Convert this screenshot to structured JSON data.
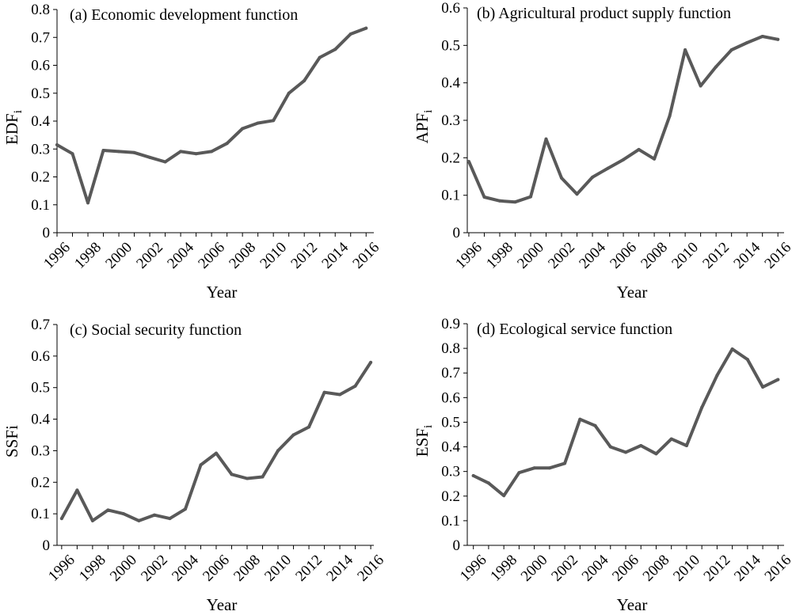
{
  "chart_data": [
    {
      "type": "line",
      "title": "(a) Economic development function",
      "xlabel": "Year",
      "ylabel": "EDF",
      "ylabel_sub": "i",
      "ylim": [
        0,
        0.8
      ],
      "ytick_values": [
        0,
        0.1,
        0.2,
        0.3,
        0.4,
        0.5,
        0.6,
        0.7,
        0.8
      ],
      "ytick_labels": [
        "0",
        "0.1",
        "0.2",
        "0.3",
        "0.4",
        "0.5",
        "0.6",
        "0.7",
        "0.8"
      ],
      "xtick_labels": [
        "1996",
        "1998",
        "2000",
        "2002",
        "2004",
        "2006",
        "2008",
        "2010",
        "2012",
        "2014",
        "2016"
      ],
      "line_color": "#595959",
      "x": [
        1996,
        1997,
        1998,
        1999,
        2000,
        2001,
        2002,
        2003,
        2004,
        2005,
        2006,
        2007,
        2008,
        2009,
        2010,
        2011,
        2012,
        2013,
        2014,
        2015,
        2016
      ],
      "values": [
        0.315,
        0.283,
        0.107,
        0.295,
        0.291,
        0.287,
        0.27,
        0.254,
        0.291,
        0.283,
        0.291,
        0.32,
        0.373,
        0.393,
        0.402,
        0.5,
        0.545,
        0.628,
        0.657,
        0.712,
        0.733
      ]
    },
    {
      "type": "line",
      "title": "(b) Agricultural product supply function",
      "xlabel": "Year",
      "ylabel": "APF",
      "ylabel_sub": "i",
      "ylim": [
        0,
        0.6
      ],
      "ytick_values": [
        0,
        0.1,
        0.2,
        0.3,
        0.4,
        0.5,
        0.6
      ],
      "ytick_labels": [
        "0",
        "0.1",
        "0.2",
        "0.3",
        "0.4",
        "0.5",
        "0.6"
      ],
      "xtick_labels": [
        "1996",
        "1998",
        "2000",
        "2002",
        "2004",
        "2006",
        "2008",
        "2010",
        "2012",
        "2014",
        "2016"
      ],
      "line_color": "#595959",
      "x": [
        1996,
        1997,
        1998,
        1999,
        2000,
        2001,
        2002,
        2003,
        2004,
        2005,
        2006,
        2007,
        2008,
        2009,
        2010,
        2011,
        2012,
        2013,
        2014,
        2015,
        2016
      ],
      "values": [
        0.19,
        0.095,
        0.085,
        0.082,
        0.096,
        0.25,
        0.146,
        0.103,
        0.148,
        0.172,
        0.195,
        0.222,
        0.197,
        0.312,
        0.488,
        0.392,
        0.443,
        0.488,
        0.507,
        0.524,
        0.516
      ]
    },
    {
      "type": "line",
      "title": "(c) Social security function",
      "xlabel": "Year",
      "ylabel": "SSFi",
      "ylabel_sub": "",
      "ylim": [
        0,
        0.7
      ],
      "ytick_values": [
        0,
        0.1,
        0.2,
        0.3,
        0.4,
        0.5,
        0.6,
        0.7
      ],
      "ytick_labels": [
        "0",
        "0.1",
        "0.2",
        "0.3",
        "0.4",
        "0.5",
        "0.6",
        "0.7"
      ],
      "xtick_labels": [
        "1996",
        "1998",
        "2000",
        "2002",
        "2004",
        "2006",
        "2008",
        "2010",
        "2012",
        "2014",
        "2016"
      ],
      "line_color": "#595959",
      "x": [
        1996,
        1997,
        1998,
        1999,
        2000,
        2001,
        2002,
        2003,
        2004,
        2005,
        2006,
        2007,
        2008,
        2009,
        2010,
        2011,
        2012,
        2013,
        2014,
        2015,
        2016
      ],
      "values": [
        0.085,
        0.175,
        0.078,
        0.112,
        0.1,
        0.078,
        0.096,
        0.085,
        0.115,
        0.255,
        0.292,
        0.225,
        0.212,
        0.217,
        0.3,
        0.35,
        0.375,
        0.485,
        0.478,
        0.505,
        0.58
      ]
    },
    {
      "type": "line",
      "title": "(d) Ecological service function",
      "xlabel": "Year",
      "ylabel": "ESF",
      "ylabel_sub": "i",
      "ylim": [
        0,
        0.9
      ],
      "ytick_values": [
        0,
        0.1,
        0.2,
        0.3,
        0.4,
        0.5,
        0.6,
        0.7,
        0.8,
        0.9
      ],
      "ytick_labels": [
        "0",
        "0.1",
        "0.2",
        "0.3",
        "0.4",
        "0.5",
        "0.6",
        "0.7",
        "0.8",
        "0.9"
      ],
      "xtick_labels": [
        "1996",
        "1998",
        "2000",
        "2002",
        "2004",
        "2006",
        "2008",
        "2010",
        "2012",
        "2014",
        "2016"
      ],
      "line_color": "#595959",
      "x": [
        1996,
        1997,
        1998,
        1999,
        2000,
        2001,
        2002,
        2003,
        2004,
        2005,
        2006,
        2007,
        2008,
        2009,
        2010,
        2011,
        2012,
        2013,
        2014,
        2015,
        2016
      ],
      "values": [
        0.283,
        0.253,
        0.202,
        0.295,
        0.314,
        0.314,
        0.333,
        0.512,
        0.486,
        0.4,
        0.378,
        0.405,
        0.372,
        0.432,
        0.405,
        0.56,
        0.69,
        0.797,
        0.755,
        0.643,
        0.673
      ]
    }
  ]
}
